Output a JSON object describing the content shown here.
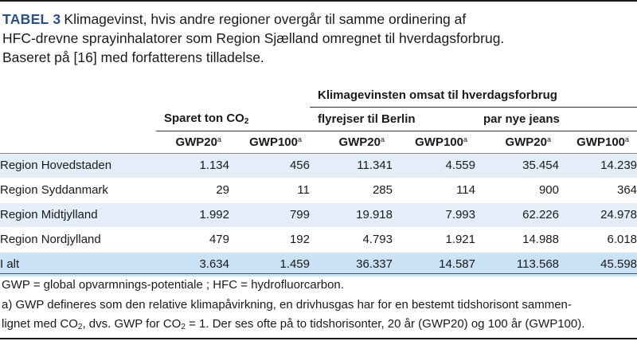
{
  "caption": {
    "label": "TABEL 3",
    "line1": "Klimagevinst, hvis andre regioner overgår til samme ordinering af",
    "line2": "HFC-drevne sprayinhalatorer som Region Sjælland omregnet til hverdagsforbrug.",
    "line3": "Baseret på [16] med forfatterens tilladelse."
  },
  "table": {
    "group_header": "Klimagevinsten omsat til hverdagsforbrug",
    "saved_label": "Sparet ton CO",
    "saved_sub": "2",
    "flights_label": "flyrejser til Berlin",
    "jeans_label": "par nye jeans",
    "gwp20": "GWP20",
    "gwp100": "GWP100",
    "note_mark": "a",
    "rows": [
      {
        "name": "Region Hovedstaden",
        "values": [
          "1.134",
          "456",
          "11.341",
          "4.559",
          "35.454",
          "14.239"
        ]
      },
      {
        "name": "Region Syddanmark",
        "values": [
          "29",
          "11",
          "285",
          "114",
          "900",
          "364"
        ]
      },
      {
        "name": "Region Midtjylland",
        "values": [
          "1.992",
          "799",
          "19.918",
          "7.993",
          "62.226",
          "24.978"
        ]
      },
      {
        "name": "Region Nordjylland",
        "values": [
          "479",
          "192",
          "4.793",
          "1.921",
          "14.988",
          "6.018"
        ]
      }
    ],
    "total": {
      "name": "I alt",
      "values": [
        "3.634",
        "1.459",
        "36.337",
        "14.587",
        "113.568",
        "45.598"
      ]
    }
  },
  "footnotes": {
    "abbrev": "GWP = global opvarmnings-potentiale ; HFC = hydrofluorcarbon.",
    "note_a_1": "a) GWP defineres som den relative klimapåvirkning, en drivhusgas har for en bestemt tidshorisont sammen-",
    "note_a_2_pre": "lignet med CO",
    "note_a_2_sub1": "2",
    "note_a_2_mid": ", dvs. GWP for CO",
    "note_a_2_sub2": "2",
    "note_a_2_post": " = 1. Der ses ofte på to tidshorisonter, 20 år (GWP20) og 100 år (GWP100)."
  }
}
